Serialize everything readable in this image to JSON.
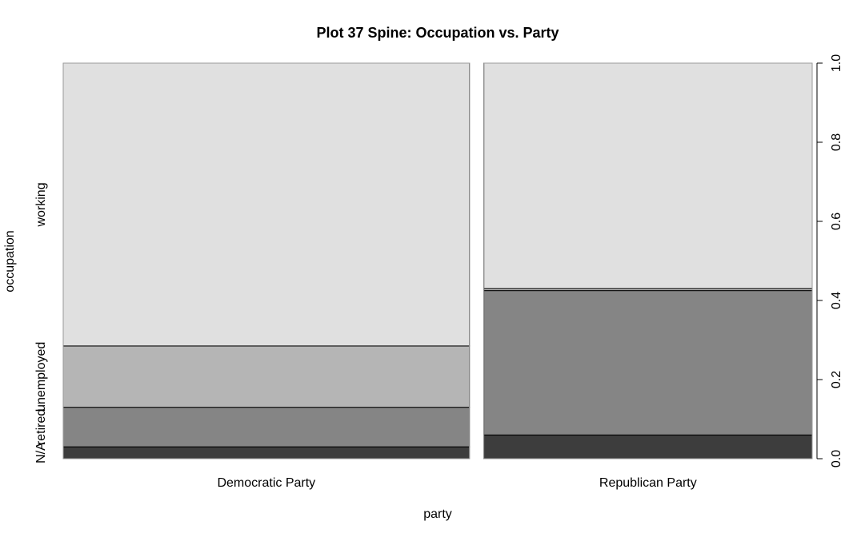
{
  "chart_data": {
    "type": "spine",
    "title": "Plot 37 Spine: Occupation vs. Party",
    "xlabel": "party",
    "ylabel": "occupation",
    "categories": [
      "Democratic Party",
      "Republican Party"
    ],
    "category_widths": [
      0.553,
      0.447
    ],
    "series": [
      {
        "name": "N/A",
        "color": "#3d3d3d",
        "values": [
          0.03,
          0.06
        ]
      },
      {
        "name": "retired",
        "color": "#858585",
        "values": [
          0.1,
          0.365
        ]
      },
      {
        "name": "unemployed",
        "color": "#b5b5b5",
        "values": [
          0.155,
          0.005
        ]
      },
      {
        "name": "working",
        "color": "#e0e0e0",
        "values": [
          0.715,
          0.57
        ]
      }
    ],
    "y_axis_ticks": [
      "0.0",
      "0.2",
      "0.4",
      "0.6",
      "0.8",
      "1.0"
    ],
    "ylim": [
      0,
      1
    ],
    "grid": false,
    "legend": "none"
  }
}
